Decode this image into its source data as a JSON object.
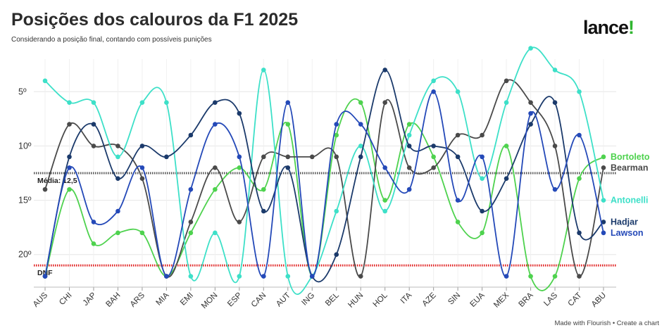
{
  "header": {
    "title": "Posições dos calouros da F1 2025",
    "subtitle": "Considerando a posição final, contando com possíveis punições"
  },
  "brand": {
    "logo_text": "lance",
    "logo_mark": "!",
    "accent_color": "#2fb52f"
  },
  "footer": {
    "credit": "Made with Flourish • Create a chart"
  },
  "chart_data": {
    "type": "line",
    "categories": [
      "AUS",
      "CHI",
      "JAP",
      "BAH",
      "ARS",
      "MIA",
      "EMI",
      "MON",
      "ESP",
      "CAN",
      "AUT",
      "ING",
      "BEL",
      "HUN",
      "HOL",
      "ITA",
      "AZE",
      "SIN",
      "EUA",
      "MEX",
      "BRA",
      "LAS",
      "CAT",
      "ABU"
    ],
    "y_axis": {
      "inverted": true,
      "ylim": [
        2,
        23
      ],
      "ticks": [
        5,
        10,
        15,
        20
      ],
      "tick_labels": [
        "5º",
        "10º",
        "15º",
        "20º"
      ]
    },
    "grid": true,
    "reference_lines": [
      {
        "label": "Média: 12,5",
        "value": 12.5,
        "color": "#555555",
        "style": "dotted"
      },
      {
        "label": "DNF",
        "value": 21,
        "color": "#e02020",
        "style": "dotted"
      }
    ],
    "series": [
      {
        "name": "Bortoleto",
        "color": "#4ed24e",
        "values": [
          22,
          14,
          19,
          18,
          18,
          22,
          18,
          14,
          12,
          14,
          8,
          22,
          9,
          6,
          15,
          8,
          11,
          17,
          18,
          10,
          22,
          22,
          13,
          11
        ]
      },
      {
        "name": "Bearman",
        "color": "#4a4a4a",
        "values": [
          14,
          8,
          10,
          10,
          13,
          22,
          17,
          12,
          17,
          11,
          11,
          11,
          11,
          22,
          6,
          12,
          12,
          9,
          9,
          4,
          6,
          10,
          22,
          12
        ]
      },
      {
        "name": "Antonelli",
        "color": "#3de0c8",
        "values": [
          4,
          6,
          6,
          11,
          6,
          6,
          22,
          18,
          22,
          3,
          22,
          22,
          16,
          10,
          16,
          9,
          4,
          5,
          13,
          6,
          1,
          3,
          5,
          15
        ]
      },
      {
        "name": "Hadjar",
        "color": "#1b3a6b",
        "values": [
          22,
          11,
          8,
          13,
          10,
          11,
          9,
          6,
          7,
          16,
          12,
          22,
          20,
          11,
          3,
          10,
          10,
          11,
          16,
          13,
          8,
          6,
          18,
          17
        ]
      },
      {
        "name": "Lawson",
        "color": "#2449b8",
        "values": [
          22,
          12,
          17,
          16,
          12,
          22,
          14,
          8,
          11,
          22,
          6,
          22,
          8,
          8,
          12,
          14,
          5,
          15,
          11,
          22,
          7,
          14,
          9,
          18
        ]
      }
    ]
  }
}
